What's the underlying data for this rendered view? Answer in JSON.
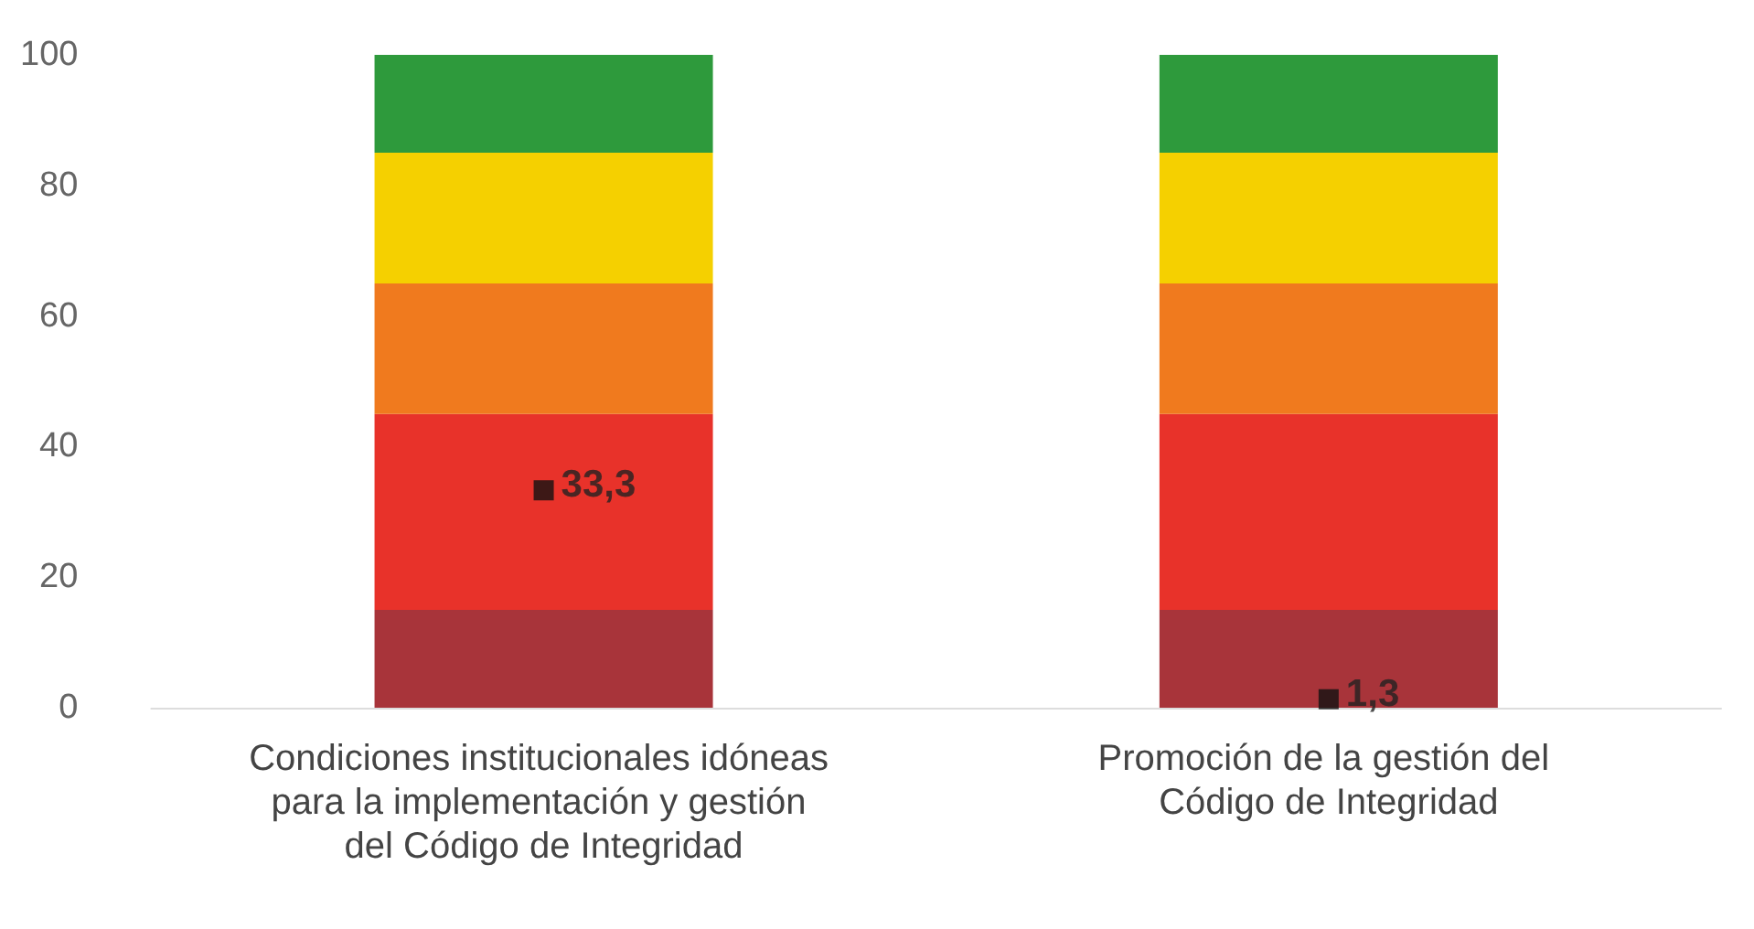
{
  "chart_data": {
    "type": "bar",
    "stacked": true,
    "categories": [
      "Condiciones institucionales idóneas para la implementación y gestión del Código de Integridad",
      "Promoción de la gestión del Código de Integridad"
    ],
    "ylim": [
      0,
      100
    ],
    "yticks": [
      0,
      20,
      40,
      60,
      80,
      100
    ],
    "grid": false,
    "series": [
      {
        "color": "#a8343a",
        "values": [
          15,
          15
        ]
      },
      {
        "color": "#e8322a",
        "values": [
          30,
          30
        ]
      },
      {
        "color": "#f07a1e",
        "values": [
          20,
          20
        ]
      },
      {
        "color": "#f5d000",
        "values": [
          20,
          20
        ]
      },
      {
        "color": "#2e9a3c",
        "values": [
          15,
          15
        ]
      },
      {
        "type": "scatter",
        "color": "#111111",
        "marker": "square",
        "values": [
          33.3,
          1.3
        ],
        "value_labels": [
          "33,3",
          "1,3"
        ]
      }
    ]
  }
}
